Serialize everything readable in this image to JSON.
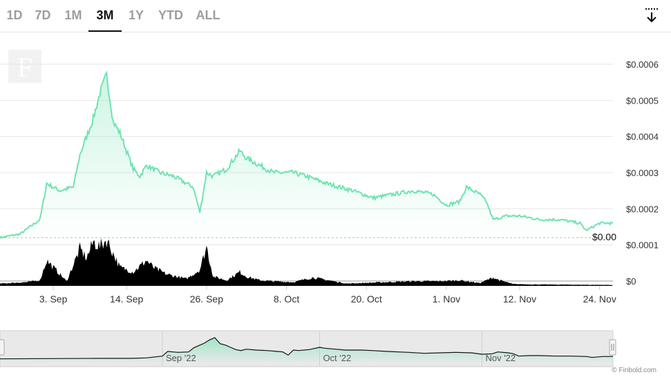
{
  "tabs": [
    {
      "label": "1D",
      "active": false
    },
    {
      "label": "7D",
      "active": false
    },
    {
      "label": "1M",
      "active": false
    },
    {
      "label": "3M",
      "active": true
    },
    {
      "label": "1Y",
      "active": false
    },
    {
      "label": "YTD",
      "active": false
    },
    {
      "label": "ALL",
      "active": false
    }
  ],
  "toolbar": {
    "download_icon": "download-icon"
  },
  "logo": {
    "letter": "F"
  },
  "current_price_label": "$0.00",
  "credit": "© Finbold.com",
  "navigator": {
    "labels": [
      "Sep '22",
      "Oct '22",
      "Nov '22"
    ]
  },
  "colors": {
    "price_line": "#6fe3b1",
    "volume": "#000000",
    "grid": "#e6e6e6"
  },
  "chart_data": {
    "type": "line",
    "title": "",
    "xlabel": "",
    "ylabel": "",
    "ylim": [
      0,
      0.0006
    ],
    "y_ticks": [
      "$0",
      "$0.0001",
      "$0.0002",
      "$0.0003",
      "$0.0004",
      "$0.0005",
      "$0.0006"
    ],
    "x_ticks": [
      "3. Sep",
      "14. Sep",
      "26. Sep",
      "8. Oct",
      "20. Oct",
      "1. Nov",
      "12. Nov",
      "24. Nov"
    ],
    "x_tick_dates": [
      "2022-09-03",
      "2022-09-14",
      "2022-09-26",
      "2022-10-08",
      "2022-10-20",
      "2022-11-01",
      "2022-11-12",
      "2022-11-24"
    ],
    "x_range": [
      "2022-08-26",
      "2022-11-26"
    ],
    "series": [
      {
        "kind": "price",
        "x": [
          "2022-08-26",
          "2022-08-29",
          "2022-09-01",
          "2022-09-02",
          "2022-09-04",
          "2022-09-06",
          "2022-09-07",
          "2022-09-08",
          "2022-09-09",
          "2022-09-10",
          "2022-09-11",
          "2022-09-12",
          "2022-09-13",
          "2022-09-14",
          "2022-09-15",
          "2022-09-16",
          "2022-09-17",
          "2022-09-19",
          "2022-09-21",
          "2022-09-23",
          "2022-09-24",
          "2022-09-25",
          "2022-09-26",
          "2022-09-27",
          "2022-09-29",
          "2022-10-01",
          "2022-10-02",
          "2022-10-04",
          "2022-10-06",
          "2022-10-09",
          "2022-10-11",
          "2022-10-14",
          "2022-10-18",
          "2022-10-21",
          "2022-10-24",
          "2022-10-27",
          "2022-10-30",
          "2022-11-01",
          "2022-11-03",
          "2022-11-04",
          "2022-11-06",
          "2022-11-07",
          "2022-11-08",
          "2022-11-10",
          "2022-11-12",
          "2022-11-15",
          "2022-11-18",
          "2022-11-21",
          "2022-11-22",
          "2022-11-24",
          "2022-11-26"
        ],
        "y": [
          0.00012,
          0.00013,
          0.00017,
          0.00027,
          0.00025,
          0.00026,
          0.00035,
          0.0004,
          0.00045,
          0.00052,
          0.00057,
          0.00044,
          0.00041,
          0.00036,
          0.00031,
          0.00029,
          0.00032,
          0.0003,
          0.00029,
          0.00027,
          0.00026,
          0.00019,
          0.0003,
          0.00029,
          0.00031,
          0.00036,
          0.00034,
          0.00032,
          0.0003,
          0.0003,
          0.00029,
          0.00027,
          0.00025,
          0.00023,
          0.00024,
          0.00025,
          0.00024,
          0.00021,
          0.00022,
          0.00026,
          0.00024,
          0.00022,
          0.00017,
          0.00018,
          0.00018,
          0.00017,
          0.00017,
          0.00016,
          0.00014,
          0.00016,
          0.00016
        ]
      },
      {
        "kind": "volume",
        "x": [
          "2022-08-26",
          "2022-08-30",
          "2022-09-01",
          "2022-09-02",
          "2022-09-03",
          "2022-09-05",
          "2022-09-07",
          "2022-09-08",
          "2022-09-09",
          "2022-09-10",
          "2022-09-11",
          "2022-09-12",
          "2022-09-13",
          "2022-09-15",
          "2022-09-17",
          "2022-09-18",
          "2022-09-20",
          "2022-09-23",
          "2022-09-25",
          "2022-09-26",
          "2022-09-27",
          "2022-09-29",
          "2022-10-01",
          "2022-10-02",
          "2022-10-04",
          "2022-10-06",
          "2022-10-09",
          "2022-10-12",
          "2022-10-17",
          "2022-10-27",
          "2022-10-31",
          "2022-11-03",
          "2022-11-06",
          "2022-11-08",
          "2022-11-09",
          "2022-11-11",
          "2022-11-14",
          "2022-11-26"
        ],
        "y": [
          5,
          8,
          12,
          55,
          40,
          10,
          80,
          60,
          95,
          85,
          100,
          70,
          40,
          30,
          55,
          40,
          25,
          15,
          35,
          85,
          20,
          12,
          30,
          20,
          12,
          10,
          8,
          18,
          5,
          10,
          10,
          12,
          6,
          18,
          12,
          4,
          3,
          2
        ]
      }
    ],
    "grid": true,
    "legend": "none",
    "current_value_label": "$0.00"
  }
}
